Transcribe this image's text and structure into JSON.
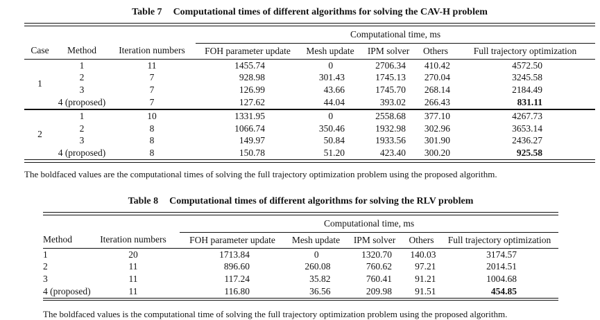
{
  "page": {
    "background": "#ffffff",
    "text_color": "#131313",
    "rule_color": "#101010"
  },
  "table7": {
    "title_label": "Table 7",
    "title_text": "Computational times of different algorithms for solving the CAV-H problem",
    "span_header": "Computational time, ms",
    "columns": [
      "Case",
      "Method",
      "Iteration numbers",
      "FOH parameter update",
      "Mesh update",
      "IPM solver",
      "Others",
      "Full trajectory optimization"
    ],
    "groups": [
      {
        "case": "1",
        "rows": [
          {
            "method": "1",
            "iters": "11",
            "foh": "1455.74",
            "mesh": "0",
            "ipm": "2706.34",
            "others": "410.42",
            "full": "4572.50",
            "bold": false
          },
          {
            "method": "2",
            "iters": "7",
            "foh": "928.98",
            "mesh": "301.43",
            "ipm": "1745.13",
            "others": "270.04",
            "full": "3245.58",
            "bold": false
          },
          {
            "method": "3",
            "iters": "7",
            "foh": "126.99",
            "mesh": "43.66",
            "ipm": "1745.70",
            "others": "268.14",
            "full": "2184.49",
            "bold": false
          },
          {
            "method": "4 (proposed)",
            "iters": "7",
            "foh": "127.62",
            "mesh": "44.04",
            "ipm": "393.02",
            "others": "266.43",
            "full": "831.11",
            "bold": true
          }
        ]
      },
      {
        "case": "2",
        "rows": [
          {
            "method": "1",
            "iters": "10",
            "foh": "1331.95",
            "mesh": "0",
            "ipm": "2558.68",
            "others": "377.10",
            "full": "4267.73",
            "bold": false
          },
          {
            "method": "2",
            "iters": "8",
            "foh": "1066.74",
            "mesh": "350.46",
            "ipm": "1932.98",
            "others": "302.96",
            "full": "3653.14",
            "bold": false
          },
          {
            "method": "3",
            "iters": "8",
            "foh": "149.97",
            "mesh": "50.84",
            "ipm": "1933.56",
            "others": "301.90",
            "full": "2436.27",
            "bold": false
          },
          {
            "method": "4 (proposed)",
            "iters": "8",
            "foh": "150.78",
            "mesh": "51.20",
            "ipm": "423.40",
            "others": "300.20",
            "full": "925.58",
            "bold": true
          }
        ]
      }
    ],
    "footnote": "The boldfaced values are the computational times of solving the full trajectory optimization problem using the proposed algorithm."
  },
  "table8": {
    "title_label": "Table 8",
    "title_text": "Computational times of different algorithms for solving the RLV problem",
    "span_header": "Computational time, ms",
    "columns": [
      "Method",
      "Iteration numbers",
      "FOH parameter update",
      "Mesh update",
      "IPM solver",
      "Others",
      "Full trajectory optimization"
    ],
    "groups": [
      {
        "rows": [
          {
            "method": "1",
            "iters": "20",
            "foh": "1713.84",
            "mesh": "0",
            "ipm": "1320.70",
            "others": "140.03",
            "full": "3174.57",
            "bold": false
          },
          {
            "method": "2",
            "iters": "11",
            "foh": "896.60",
            "mesh": "260.08",
            "ipm": "760.62",
            "others": "97.21",
            "full": "2014.51",
            "bold": false
          },
          {
            "method": "3",
            "iters": "11",
            "foh": "117.24",
            "mesh": "35.82",
            "ipm": "760.41",
            "others": "91.21",
            "full": "1004.68",
            "bold": false
          },
          {
            "method": "4 (proposed)",
            "iters": "11",
            "foh": "116.80",
            "mesh": "36.56",
            "ipm": "209.98",
            "others": "91.51",
            "full": "454.85",
            "bold": true
          }
        ]
      }
    ],
    "footnote": "The boldfaced values is the computational time of solving the full trajectory optimization problem using the proposed algorithm."
  }
}
